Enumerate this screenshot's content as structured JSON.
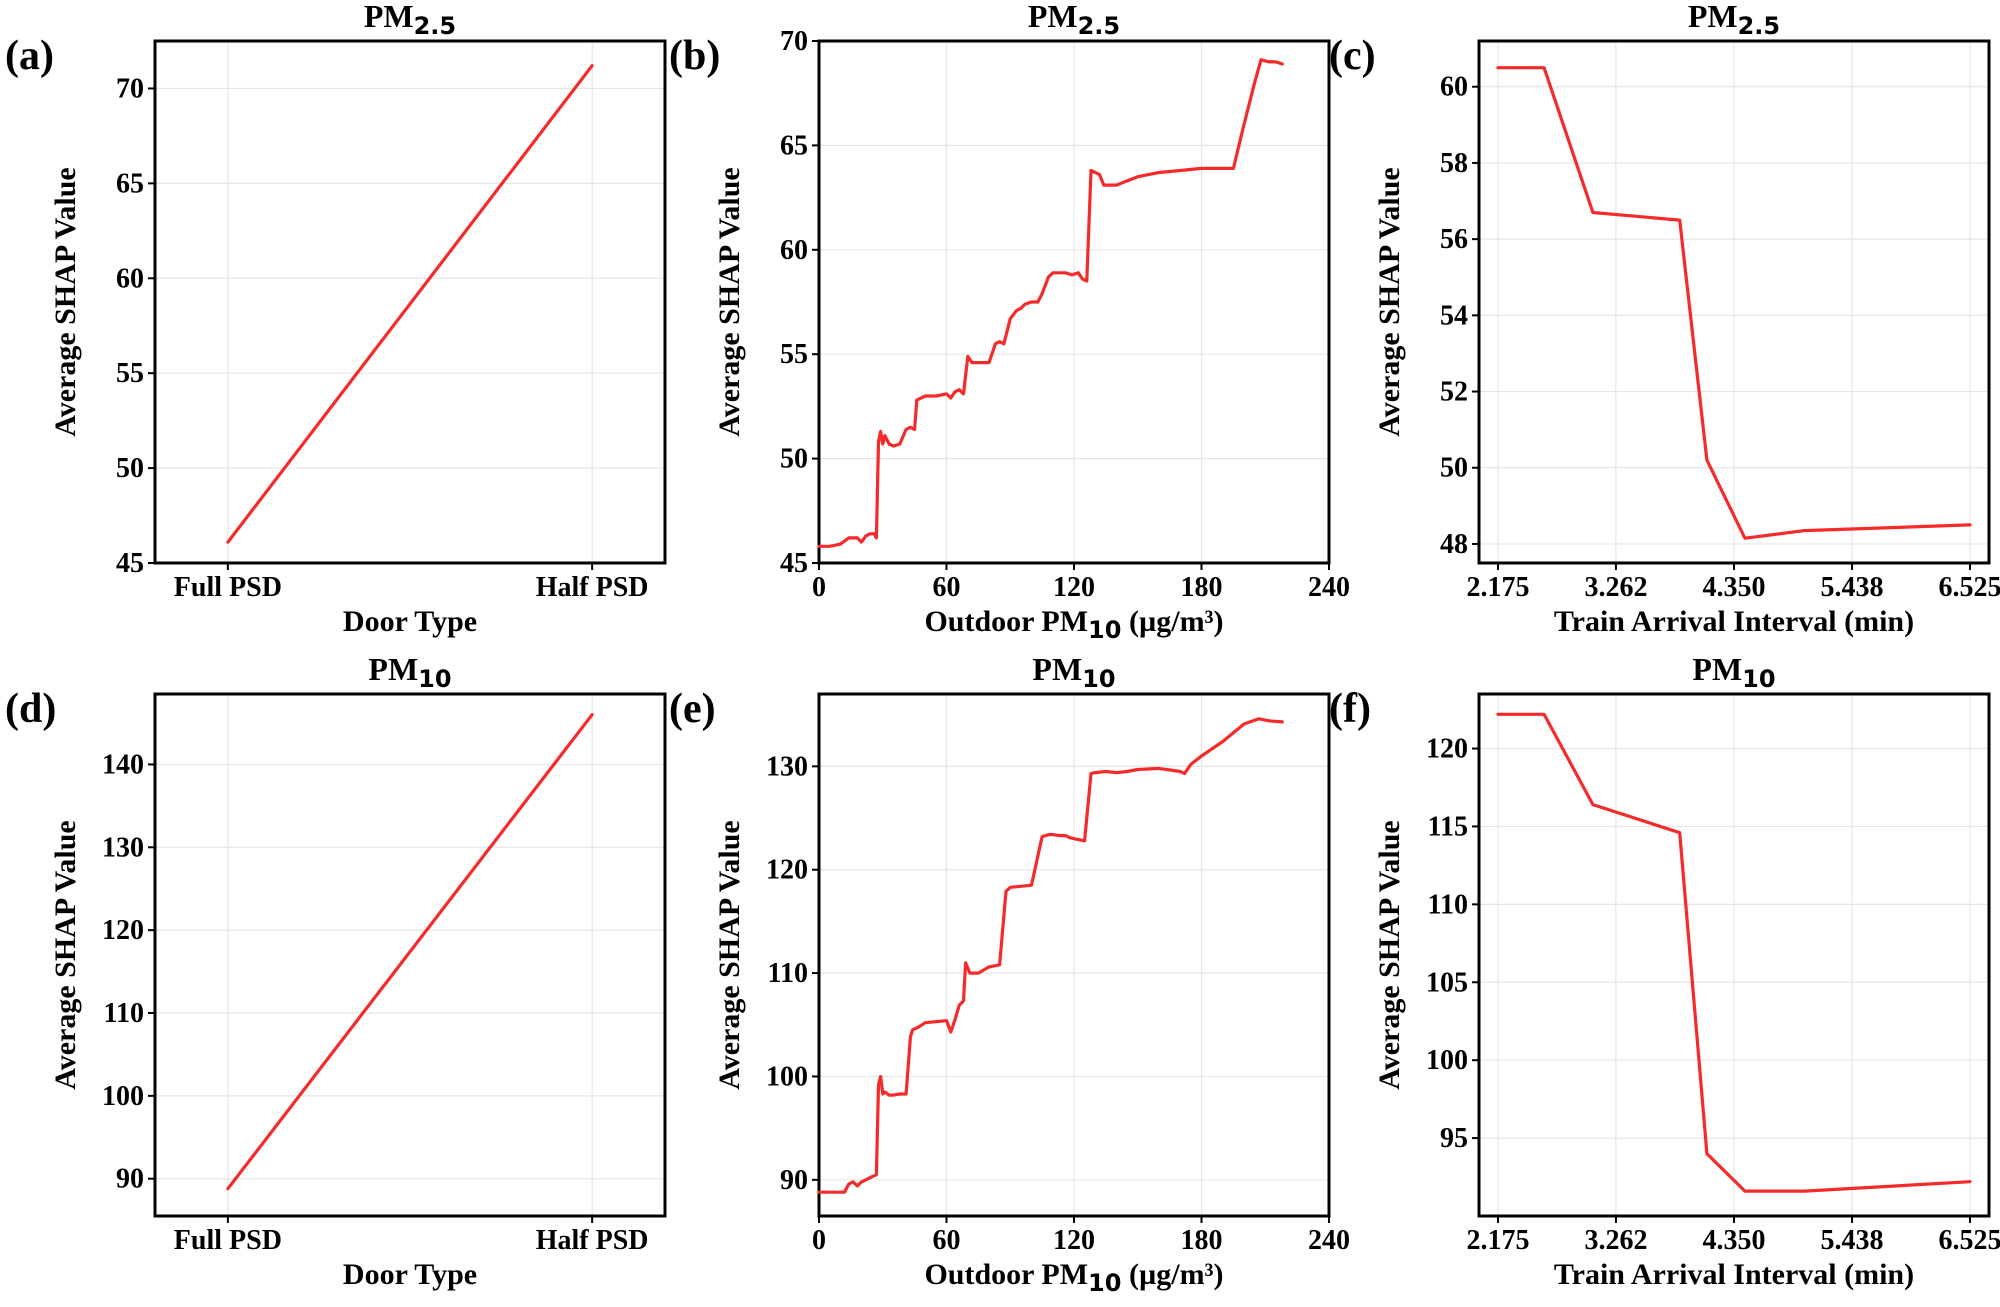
{
  "figure": {
    "line_color": "#f52a2a",
    "panels": [
      {
        "label": "(a)",
        "title": {
          "base": "PM",
          "sub": "2.5"
        },
        "xlabel": {
          "pre": "Door Type",
          "sub": "",
          "post": ""
        },
        "ylabel": "Average SHAP Value",
        "x_type": "categorical",
        "x_categories": [
          "Full PSD",
          "Half PSD"
        ],
        "xlim": [
          -0.2,
          1.2
        ],
        "ylim": [
          45,
          72.5
        ],
        "yticks": [
          45,
          50,
          55,
          60,
          65,
          70
        ],
        "xticks": [
          0,
          1
        ],
        "chart_data": {
          "type": "line",
          "x": [
            0,
            1
          ],
          "values": [
            46.1,
            71.2
          ]
        }
      },
      {
        "label": "(b)",
        "title": {
          "base": "PM",
          "sub": "2.5"
        },
        "xlabel": {
          "pre": "Outdoor PM",
          "sub": "10",
          "post": " (µg/m³)"
        },
        "ylabel": "Average SHAP Value",
        "x_type": "numeric",
        "xlim": [
          0,
          240
        ],
        "ylim": [
          45,
          70
        ],
        "yticks": [
          45,
          50,
          55,
          60,
          65,
          70
        ],
        "xticks": [
          0,
          60,
          120,
          180,
          240
        ],
        "chart_data": {
          "type": "line",
          "x": [
            0,
            5,
            10,
            14,
            18,
            20,
            22,
            24,
            26,
            27,
            28,
            29,
            30,
            31,
            33,
            35,
            38,
            41,
            43,
            45,
            46,
            50,
            55,
            60,
            62,
            64,
            66,
            68,
            70,
            72,
            75,
            80,
            83,
            85,
            87,
            90,
            93,
            95,
            97,
            100,
            103,
            105,
            108,
            110,
            113,
            116,
            119,
            122,
            124,
            126,
            128,
            130,
            132,
            134,
            136,
            140,
            145,
            150,
            155,
            160,
            170,
            180,
            190,
            195,
            200,
            205,
            208,
            212,
            215,
            218
          ],
          "values": [
            45.8,
            45.8,
            45.9,
            46.2,
            46.2,
            46.0,
            46.3,
            46.4,
            46.4,
            46.2,
            50.8,
            51.3,
            50.7,
            51.1,
            50.7,
            50.6,
            50.7,
            51.4,
            51.5,
            51.4,
            52.8,
            53.0,
            53.0,
            53.1,
            52.9,
            53.2,
            53.3,
            53.1,
            54.9,
            54.6,
            54.6,
            54.6,
            55.5,
            55.6,
            55.5,
            56.7,
            57.1,
            57.2,
            57.4,
            57.5,
            57.5,
            57.9,
            58.7,
            58.9,
            58.9,
            58.9,
            58.8,
            58.9,
            58.6,
            58.5,
            63.8,
            63.7,
            63.6,
            63.1,
            63.1,
            63.1,
            63.3,
            63.5,
            63.6,
            63.7,
            63.8,
            63.9,
            63.9,
            63.9,
            66.0,
            68.0,
            69.1,
            69.0,
            69.0,
            68.9
          ]
        }
      },
      {
        "label": "(c)",
        "title": {
          "base": "PM",
          "sub": "2.5"
        },
        "xlabel": {
          "pre": "Train Arrival Interval (min)",
          "sub": "",
          "post": ""
        },
        "ylabel": "Average SHAP Value",
        "x_type": "numeric",
        "xlim": [
          2.0,
          6.7
        ],
        "ylim": [
          47.5,
          61.2
        ],
        "yticks": [
          48,
          50,
          52,
          54,
          56,
          58,
          60
        ],
        "xticks": [
          2.175,
          3.262,
          4.35,
          5.438,
          6.525
        ],
        "xtick_labels": [
          "2.175",
          "3.262",
          "4.350",
          "5.438",
          "6.525"
        ],
        "chart_data": {
          "type": "line",
          "x": [
            2.175,
            2.6,
            3.05,
            3.85,
            4.1,
            4.45,
            5.0,
            6.525
          ],
          "values": [
            60.5,
            60.5,
            56.7,
            56.5,
            50.2,
            48.15,
            48.35,
            48.5
          ]
        }
      },
      {
        "label": "(d)",
        "title": {
          "base": "PM",
          "sub": "10"
        },
        "xlabel": {
          "pre": "Door Type",
          "sub": "",
          "post": ""
        },
        "ylabel": "Average SHAP Value",
        "x_type": "categorical",
        "x_categories": [
          "Full PSD",
          "Half PSD"
        ],
        "xlim": [
          -0.2,
          1.2
        ],
        "ylim": [
          85.5,
          148.5
        ],
        "yticks": [
          90,
          100,
          110,
          120,
          130,
          140
        ],
        "xticks": [
          0,
          1
        ],
        "chart_data": {
          "type": "line",
          "x": [
            0,
            1
          ],
          "values": [
            88.8,
            146.0
          ]
        }
      },
      {
        "label": "(e)",
        "title": {
          "base": "PM",
          "sub": "10"
        },
        "xlabel": {
          "pre": "Outdoor PM",
          "sub": "10",
          "post": " (µg/m³)"
        },
        "ylabel": "Average SHAP Value",
        "x_type": "numeric",
        "xlim": [
          0,
          240
        ],
        "ylim": [
          86.5,
          137
        ],
        "yticks": [
          90,
          100,
          110,
          120,
          130
        ],
        "xticks": [
          0,
          60,
          120,
          180,
          240
        ],
        "chart_data": {
          "type": "line",
          "x": [
            0,
            5,
            12,
            14,
            16,
            18,
            20,
            22,
            25,
            27,
            28,
            29,
            30,
            31,
            33,
            35,
            38,
            41,
            43,
            44,
            47,
            50,
            55,
            60,
            62,
            64,
            66,
            68,
            69,
            71,
            75,
            80,
            85,
            88,
            90,
            95,
            100,
            105,
            108,
            110,
            113,
            116,
            118,
            120,
            125,
            128,
            130,
            135,
            140,
            145,
            150,
            160,
            170,
            172,
            175,
            180,
            190,
            200,
            207,
            212,
            218
          ],
          "values": [
            88.8,
            88.8,
            88.8,
            89.6,
            89.8,
            89.4,
            89.8,
            90.0,
            90.3,
            90.5,
            99.2,
            100.0,
            98.3,
            98.5,
            98.2,
            98.2,
            98.3,
            98.3,
            103.8,
            104.5,
            104.8,
            105.2,
            105.3,
            105.4,
            104.3,
            105.5,
            106.9,
            107.3,
            111.0,
            110.0,
            110.0,
            110.6,
            110.8,
            117.9,
            118.3,
            118.4,
            118.5,
            123.2,
            123.4,
            123.4,
            123.3,
            123.3,
            123.1,
            123.0,
            122.8,
            129.3,
            129.4,
            129.5,
            129.4,
            129.5,
            129.7,
            129.8,
            129.5,
            129.3,
            130.2,
            131.0,
            132.4,
            134.1,
            134.6,
            134.4,
            134.3
          ]
        }
      },
      {
        "label": "(f)",
        "title": {
          "base": "PM",
          "sub": "10"
        },
        "xlabel": {
          "pre": "Train Arrival Interval (min)",
          "sub": "",
          "post": ""
        },
        "ylabel": "Average SHAP Value",
        "x_type": "numeric",
        "xlim": [
          2.0,
          6.7
        ],
        "ylim": [
          90,
          123.5
        ],
        "yticks": [
          95,
          100,
          105,
          110,
          115,
          120
        ],
        "xticks": [
          2.175,
          3.262,
          4.35,
          5.438,
          6.525
        ],
        "xtick_labels": [
          "2.175",
          "3.262",
          "4.350",
          "5.438",
          "6.525"
        ],
        "chart_data": {
          "type": "line",
          "x": [
            2.175,
            2.6,
            3.05,
            3.85,
            4.1,
            4.45,
            5.0,
            6.525
          ],
          "values": [
            122.2,
            122.2,
            116.4,
            114.6,
            94.0,
            91.6,
            91.6,
            92.2
          ]
        }
      }
    ]
  }
}
